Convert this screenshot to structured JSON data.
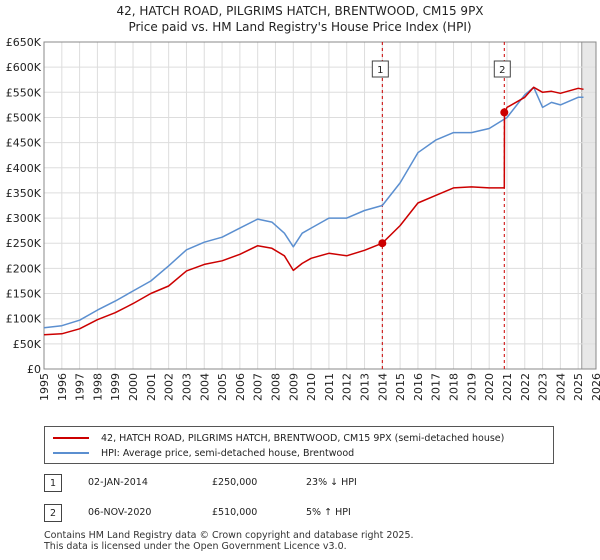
{
  "title_line1": "42, HATCH ROAD, PILGRIMS HATCH, BRENTWOOD, CM15 9PX",
  "title_line2": "Price paid vs. HM Land Registry's House Price Index (HPI)",
  "colors": {
    "property": "#cc0000",
    "hpi": "#5b8fd0",
    "marker": "#cc0000",
    "grid": "#dddddd",
    "future_shade": "#e8e8e8"
  },
  "chart_data": {
    "type": "line",
    "title": "Price paid vs. HM Land Registry's House Price Index (HPI)",
    "xlabel": "",
    "ylabel": "",
    "xlim": [
      1995.0,
      2026.0
    ],
    "ylim": [
      0,
      650000
    ],
    "y_ticks": [
      0,
      50000,
      100000,
      150000,
      200000,
      250000,
      300000,
      350000,
      400000,
      450000,
      500000,
      550000,
      600000,
      650000
    ],
    "y_tick_labels": [
      "£0",
      "£50K",
      "£100K",
      "£150K",
      "£200K",
      "£250K",
      "£300K",
      "£350K",
      "£400K",
      "£450K",
      "£500K",
      "£550K",
      "£600K",
      "£650K"
    ],
    "x_ticks": [
      1995,
      1996,
      1997,
      1998,
      1999,
      2000,
      2001,
      2002,
      2003,
      2004,
      2005,
      2006,
      2007,
      2008,
      2009,
      2010,
      2011,
      2012,
      2013,
      2014,
      2015,
      2016,
      2017,
      2018,
      2019,
      2020,
      2021,
      2022,
      2023,
      2024,
      2025,
      2026
    ],
    "x_tick_labels": [
      "1995",
      "1996",
      "1997",
      "1998",
      "1999",
      "2000",
      "2001",
      "2002",
      "2003",
      "2004",
      "2005",
      "2006",
      "2007",
      "2008",
      "2009",
      "2010",
      "2011",
      "2012",
      "2013",
      "2014",
      "2015",
      "2016",
      "2017",
      "2018",
      "2019",
      "2020",
      "2021",
      "2022",
      "2023",
      "2024",
      "2025",
      "2026"
    ],
    "grid": true,
    "future_start": 2025.2,
    "series": [
      {
        "name": "42, HATCH ROAD, PILGRIMS HATCH, BRENTWOOD, CM15 9PX (semi-detached house)",
        "x": [
          1995.0,
          1996.0,
          1997.0,
          1998.0,
          1999.0,
          2000.0,
          2001.0,
          2002.0,
          2003.0,
          2004.0,
          2005.0,
          2006.0,
          2007.0,
          2007.8,
          2008.5,
          2009.0,
          2009.5,
          2010.0,
          2011.0,
          2012.0,
          2013.0,
          2014.0,
          2015.0,
          2016.0,
          2017.0,
          2018.0,
          2019.0,
          2020.0,
          2020.85,
          2020.86,
          2021.0,
          2022.0,
          2022.5,
          2023.0,
          2023.5,
          2024.0,
          2025.0,
          2025.3
        ],
        "values": [
          68000,
          70000,
          80000,
          98000,
          112000,
          130000,
          150000,
          165000,
          195000,
          208000,
          215000,
          228000,
          245000,
          240000,
          225000,
          196000,
          210000,
          220000,
          230000,
          225000,
          236000,
          250000,
          285000,
          330000,
          345000,
          360000,
          362000,
          360000,
          360000,
          510000,
          520000,
          540000,
          560000,
          550000,
          552000,
          548000,
          558000,
          556000
        ]
      },
      {
        "name": "HPI: Average price, semi-detached house, Brentwood",
        "x": [
          1995.0,
          1996.0,
          1997.0,
          1998.0,
          1999.0,
          2000.0,
          2001.0,
          2002.0,
          2003.0,
          2004.0,
          2005.0,
          2006.0,
          2007.0,
          2007.8,
          2008.5,
          2009.0,
          2009.5,
          2010.0,
          2011.0,
          2012.0,
          2013.0,
          2014.0,
          2015.0,
          2016.0,
          2017.0,
          2018.0,
          2019.0,
          2020.0,
          2021.0,
          2022.0,
          2022.5,
          2023.0,
          2023.5,
          2024.0,
          2025.0,
          2025.3
        ],
        "values": [
          82000,
          86000,
          97000,
          117000,
          135000,
          155000,
          175000,
          205000,
          237000,
          252000,
          262000,
          280000,
          298000,
          292000,
          270000,
          243000,
          270000,
          280000,
          300000,
          300000,
          315000,
          325000,
          370000,
          430000,
          455000,
          470000,
          470000,
          478000,
          500000,
          545000,
          560000,
          520000,
          530000,
          525000,
          540000,
          540000
        ]
      }
    ],
    "annotations": [
      {
        "label": "1",
        "x": 2014.0,
        "y": 250000
      },
      {
        "label": "2",
        "x": 2020.85,
        "y": 510000
      }
    ]
  },
  "legend": {
    "items": [
      "42, HATCH ROAD, PILGRIMS HATCH, BRENTWOOD, CM15 9PX (semi-detached house)",
      "HPI: Average price, semi-detached house, Brentwood"
    ]
  },
  "transactions": [
    {
      "num": "1",
      "date": "02-JAN-2014",
      "price": "£250,000",
      "hpi": "23% ↓ HPI"
    },
    {
      "num": "2",
      "date": "06-NOV-2020",
      "price": "£510,000",
      "hpi": "5% ↑ HPI"
    }
  ],
  "footer": {
    "line1": "Contains HM Land Registry data © Crown copyright and database right 2025.",
    "line2": "This data is licensed under the Open Government Licence v3.0."
  }
}
